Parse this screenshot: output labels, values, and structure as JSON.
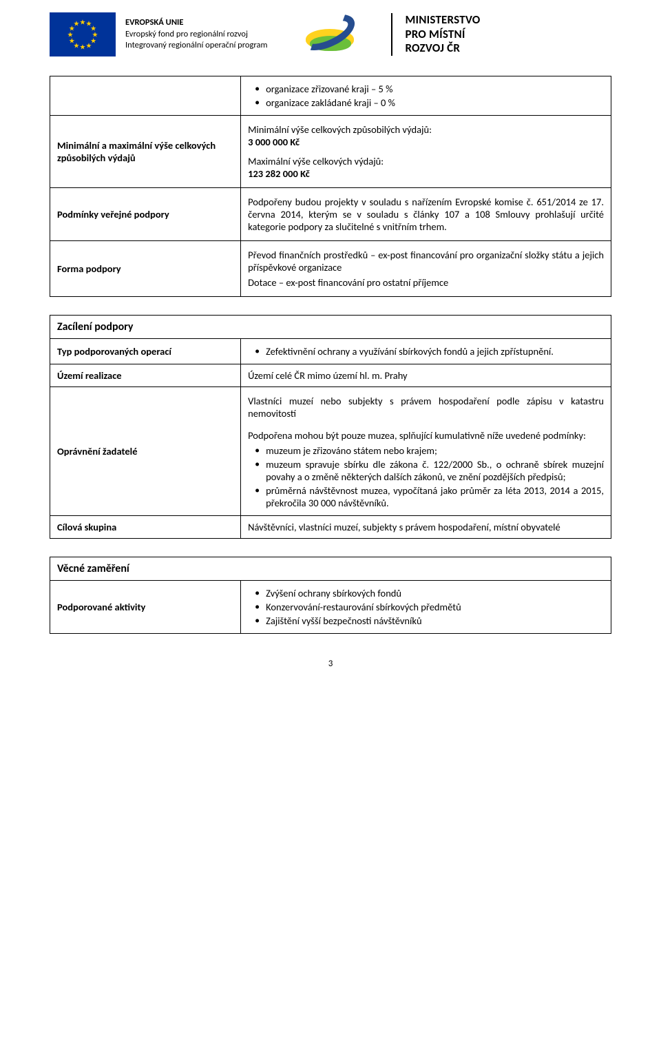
{
  "header": {
    "eu": {
      "line1": "EVROPSKÁ UNIE",
      "line2": "Evropský fond pro regionální rozvoj",
      "line3": "Integrovaný regionální operační program"
    },
    "mmr": {
      "line1": "MINISTERSTVO",
      "line2": "PRO MÍSTNÍ",
      "line3": "ROZVOJ ČR"
    }
  },
  "table1": {
    "row1_bullets": [
      "organizace zřizované kraji – 5 %",
      "organizace zakládané kraji – 0 %"
    ],
    "row2_label": "Minimální a maximální výše celkových způsobilých výdajů",
    "row2_line1": "Minimální výše celkových způsobilých výdajů:",
    "row2_val1": "3 000 000 Kč",
    "row2_line2": "Maximální výše celkových výdajů:",
    "row2_val2": "123 282 000 Kč",
    "row3_label": "Podmínky veřejné podpory",
    "row3_text": "Podpořeny budou projekty v souladu s nařízením Evropské komise č. 651/2014 ze 17. června 2014, kterým se v souladu s články 107 a 108 Smlouvy prohlašují určité kategorie podpory za slučitelné s vnitřním trhem.",
    "row4_label": "Forma podpory",
    "row4_text1": "Převod finančních prostředků – ex-post financování pro organizační složky státu a jejich příspěvkové organizace",
    "row4_text2": "Dotace – ex-post financování pro ostatní příjemce"
  },
  "table2": {
    "header": "Zacílení podpory",
    "r1_label": "Typ podporovaných operací",
    "r1_bullet": "Zefektivnění ochrany a využívání sbírkových fondů a jejich zpřístupnění.",
    "r2_label": "Území realizace",
    "r2_text": "Území celé ČR mimo území hl. m. Prahy",
    "r3_label": "Oprávnění žadatelé",
    "r3_intro": "Vlastníci muzeí nebo subjekty s právem hospodaření podle zápisu v katastru nemovitostí",
    "r3_cond_intro": "Podpořena mohou být pouze muzea, splňující kumulativně níže uvedené podmínky:",
    "r3_bullets": [
      "muzeum je zřizováno státem nebo krajem;",
      "muzeum spravuje sbírku dle zákona č. 122/2000 Sb., o ochraně sbírek muzejní povahy a o změně některých dalších zákonů, ve znění pozdějších předpisů;",
      "průměrná návštěvnost muzea, vypočítaná jako průměr za léta 2013, 2014 a 2015, překročila 30 000 návštěvníků."
    ],
    "r4_label": "Cílová skupina",
    "r4_text": "Návštěvníci, vlastníci muzeí, subjekty s právem hospodaření, místní obyvatelé"
  },
  "table3": {
    "header": "Věcné zaměření",
    "r1_label": "Podporované aktivity",
    "r1_bullets": [
      "Zvýšení ochrany sbírkových fondů",
      "Konzervování-restaurování sbírkových předmětů",
      "Zajištění vyšší bezpečnosti návštěvníků"
    ]
  },
  "page_number": "3",
  "eu_stars": 12
}
